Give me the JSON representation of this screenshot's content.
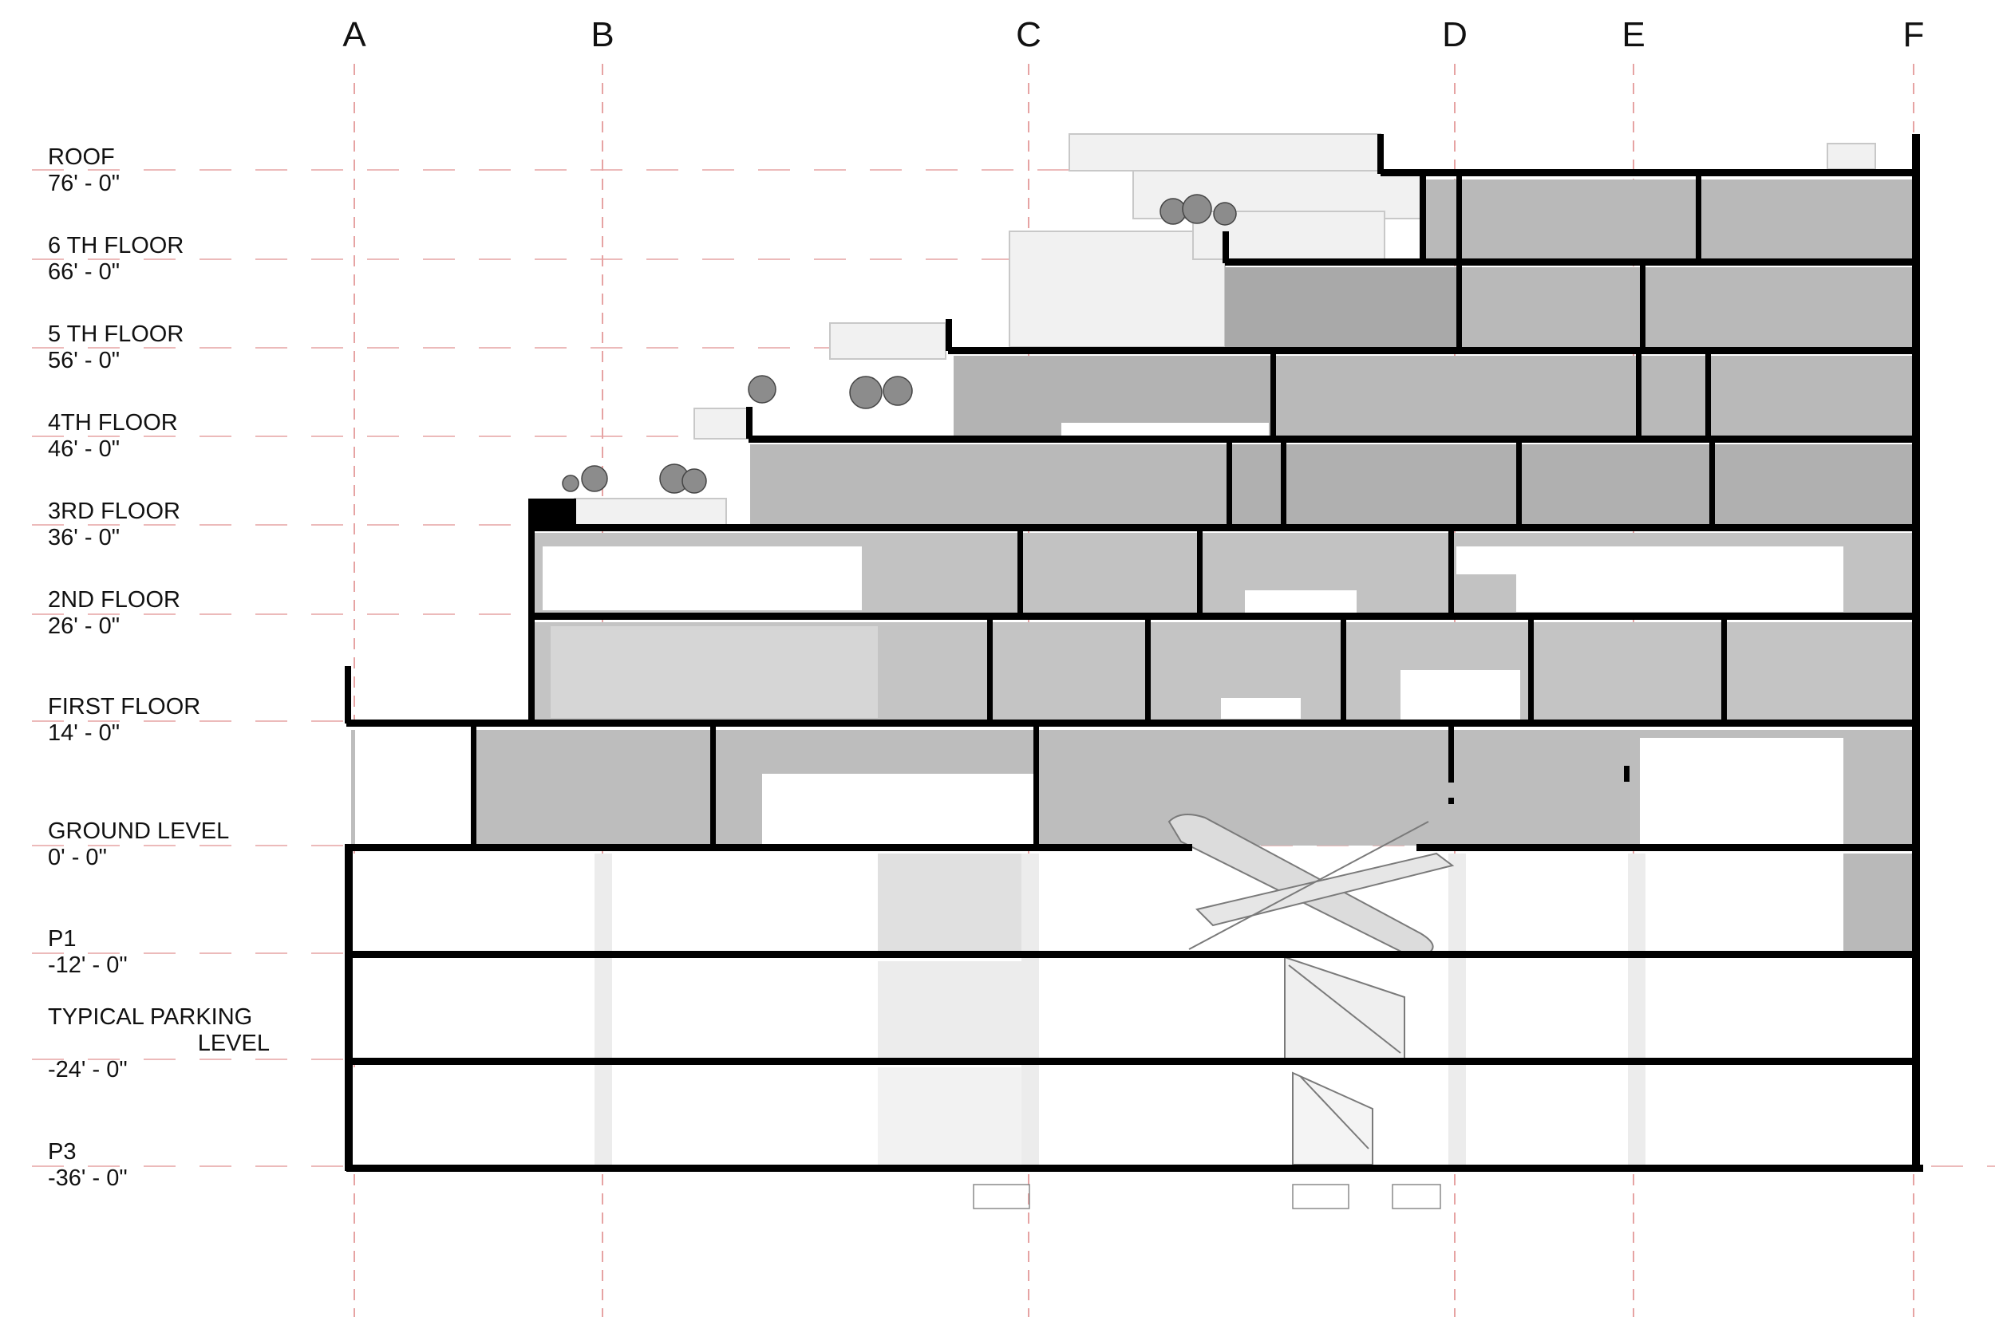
{
  "gridlines": [
    "A",
    "B",
    "C",
    "D",
    "E",
    "F"
  ],
  "levels": [
    {
      "name": "ROOF",
      "elevation": "76' - 0\""
    },
    {
      "name": "6 TH FLOOR",
      "elevation": "66' - 0\""
    },
    {
      "name": "5 TH FLOOR",
      "elevation": "56' - 0\""
    },
    {
      "name": "4TH FLOOR",
      "elevation": "46' - 0\""
    },
    {
      "name": "3RD FLOOR",
      "elevation": "36' - 0\""
    },
    {
      "name": "2ND FLOOR",
      "elevation": "26' - 0\""
    },
    {
      "name": "FIRST FLOOR",
      "elevation": "14' - 0\""
    },
    {
      "name": "GROUND LEVEL",
      "elevation": "0' - 0\""
    },
    {
      "name": "P1",
      "elevation": "-12' - 0\""
    },
    {
      "name": "TYPICAL PARKING",
      "name_line2": "LEVEL",
      "elevation": "-24' - 0\""
    },
    {
      "name": "P3",
      "elevation": "-36' - 0\""
    }
  ],
  "colors": {
    "slab": "#000000",
    "room_fill": "#b9b9b9",
    "room_fill_dark": "#a9a9a9",
    "room_fill_light": "#d3d3d3",
    "gridline": "#e6a3a3",
    "level_line": "#e6a3a3"
  }
}
